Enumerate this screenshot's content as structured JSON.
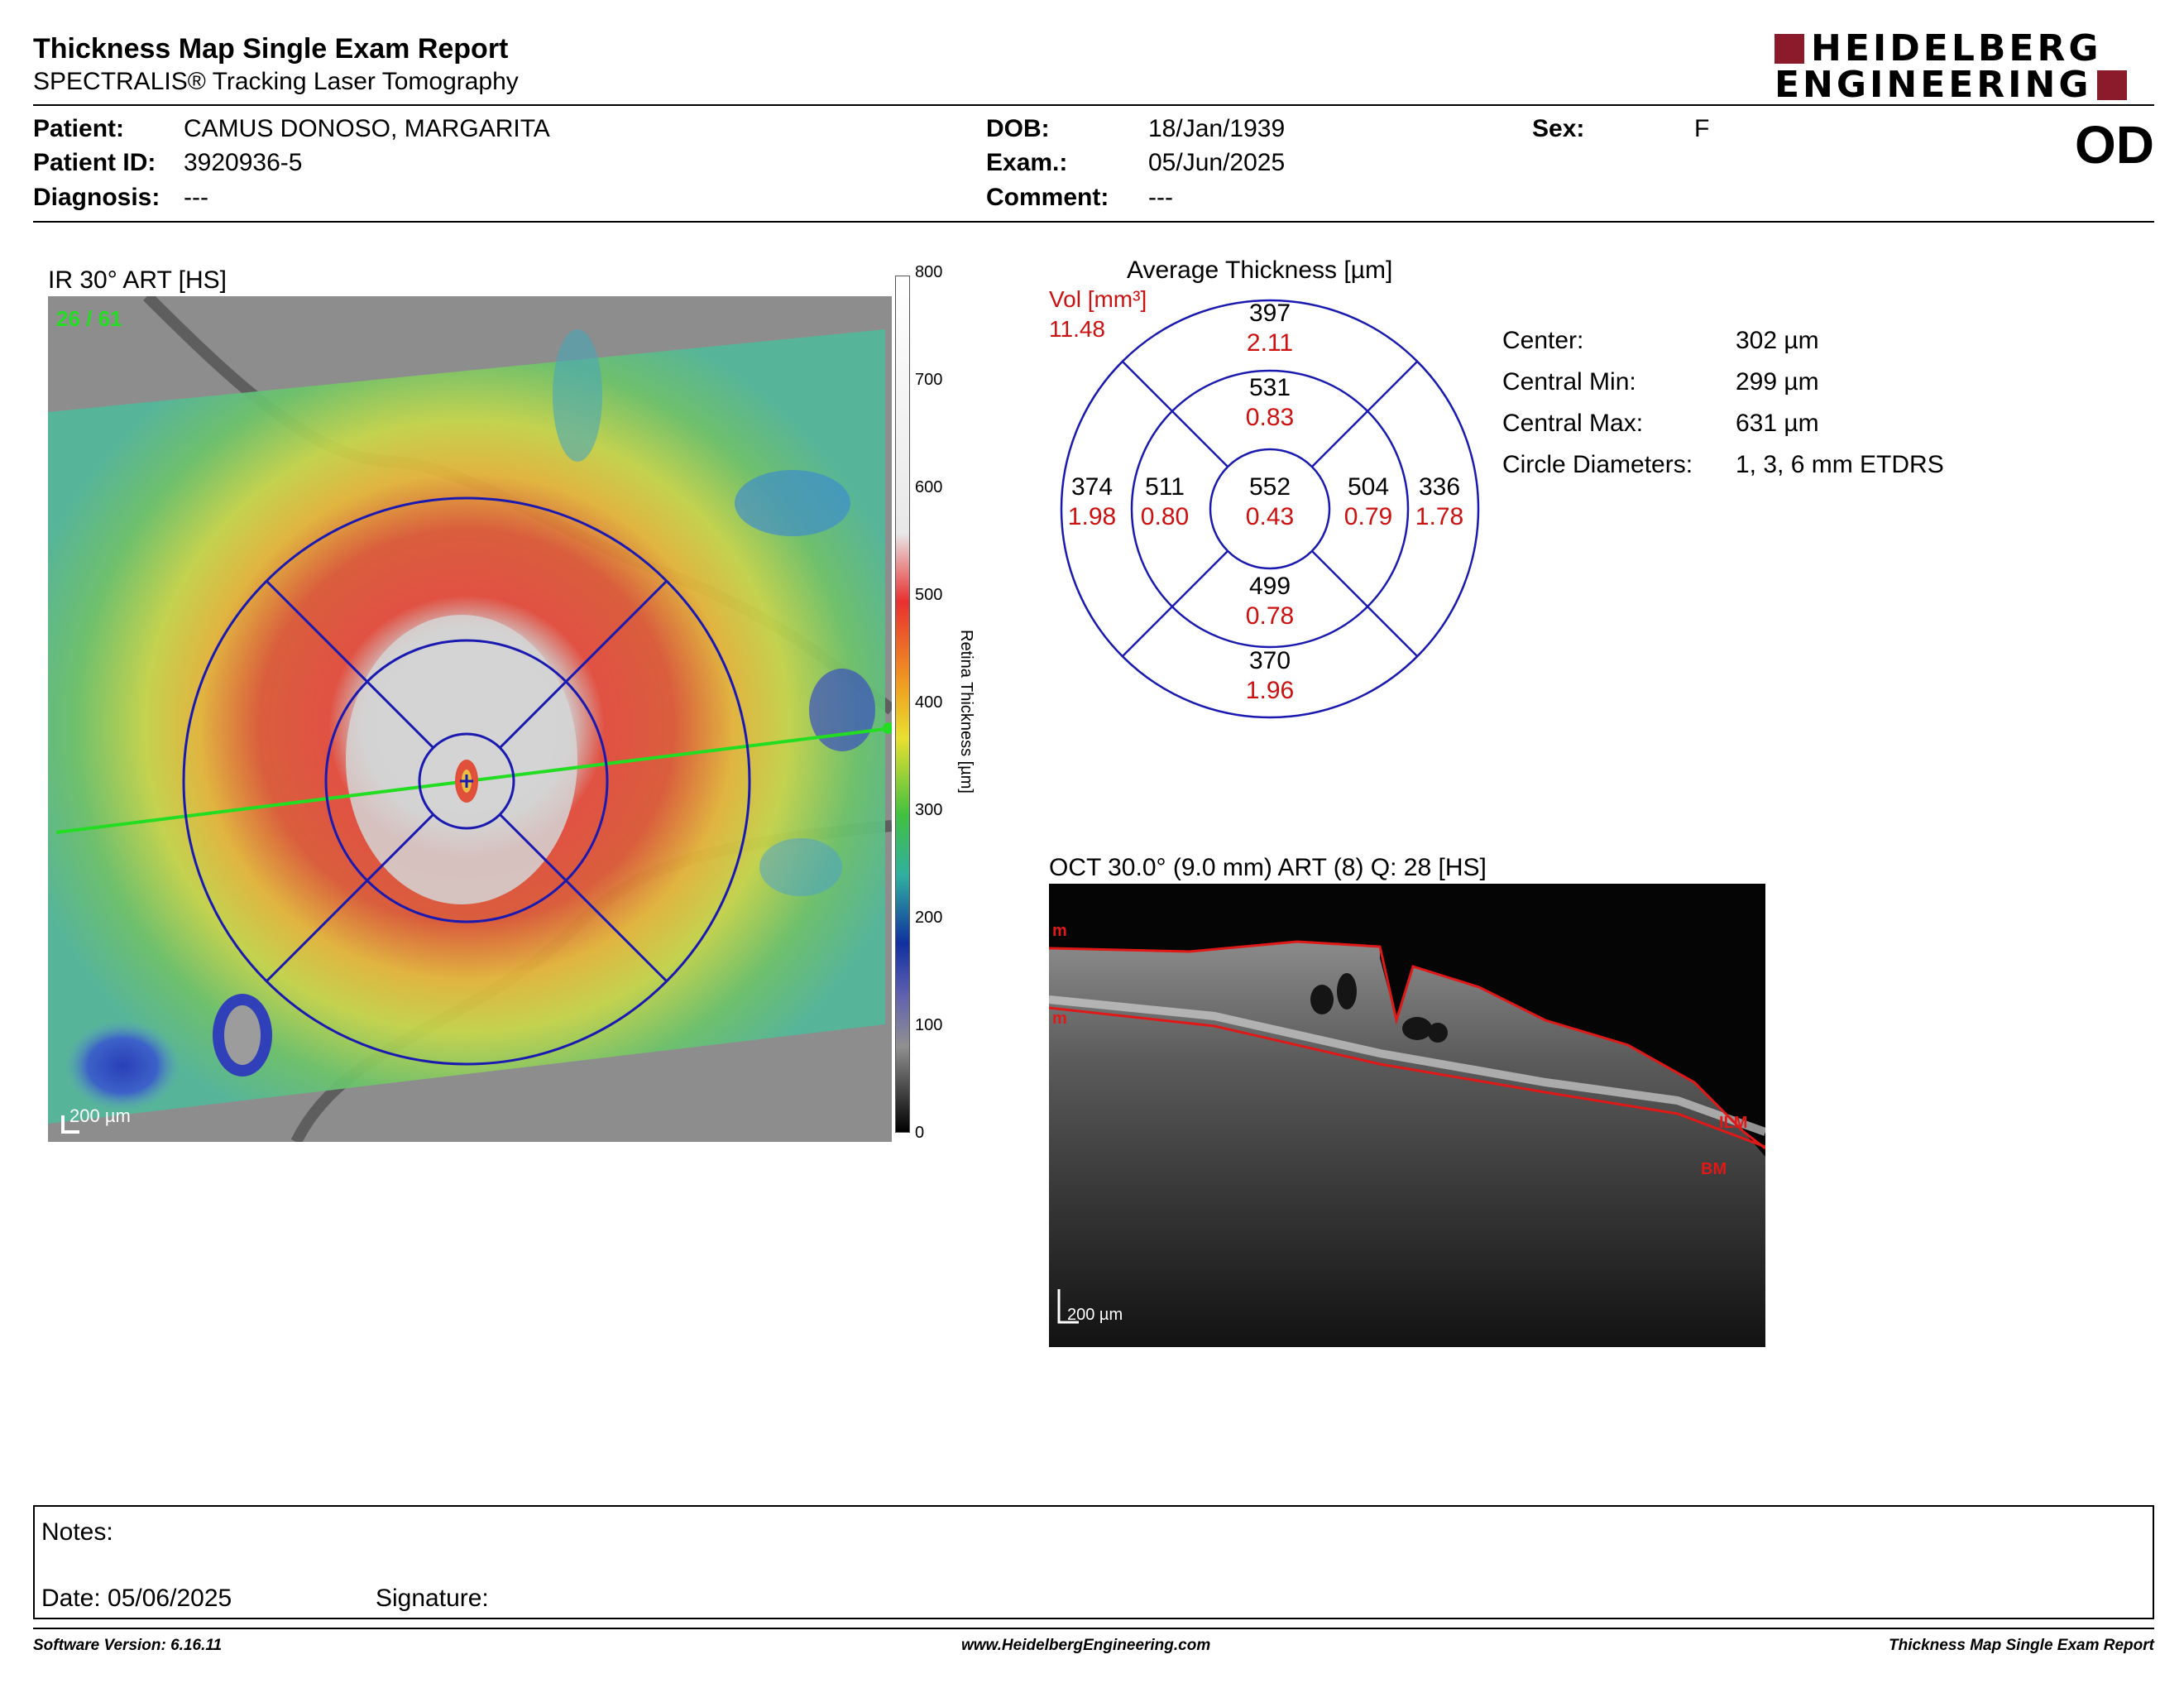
{
  "header": {
    "title": "Thickness Map Single Exam Report",
    "subtitle": "SPECTRALIS® Tracking Laser Tomography",
    "logo_line1": "HEIDELBERG",
    "logo_line2": "ENGINEERING",
    "eye": "OD"
  },
  "patient": {
    "patient_label": "Patient:",
    "patient_value": "CAMUS DONOSO, MARGARITA",
    "id_label": "Patient ID:",
    "id_value": "3920936-5",
    "diagnosis_label": "Diagnosis:",
    "diagnosis_value": "---",
    "dob_label": "DOB:",
    "dob_value": "18/Jan/1939",
    "exam_label": "Exam.:",
    "exam_value": "05/Jun/2025",
    "comment_label": "Comment:",
    "comment_value": "---",
    "sex_label": "Sex:",
    "sex_value": "F"
  },
  "ir_image": {
    "title": "IR 30° ART [HS]",
    "frame": "26 / 61",
    "scale_bar": "200 µm",
    "colorbar_label": "Retina Thickness [µm]",
    "colorbar_ticks": [
      "800",
      "700",
      "600",
      "500",
      "400",
      "300",
      "200",
      "100",
      "0"
    ]
  },
  "etdrs": {
    "title": "Average Thickness [µm]",
    "vol_label": "Vol [mm³]",
    "vol_total": "11.48",
    "center": {
      "thickness": "552",
      "volume": "0.43"
    },
    "inner_superior": {
      "thickness": "531",
      "volume": "0.83"
    },
    "inner_temporal": {
      "thickness": "511",
      "volume": "0.80"
    },
    "inner_nasal": {
      "thickness": "504",
      "volume": "0.79"
    },
    "inner_inferior": {
      "thickness": "499",
      "volume": "0.78"
    },
    "outer_superior": {
      "thickness": "397",
      "volume": "2.11"
    },
    "outer_temporal": {
      "thickness": "374",
      "volume": "1.98"
    },
    "outer_nasal": {
      "thickness": "336",
      "volume": "1.78"
    },
    "outer_inferior": {
      "thickness": "370",
      "volume": "1.96"
    }
  },
  "metrics": [
    {
      "label": "Center:",
      "value": "302 µm"
    },
    {
      "label": "Central Min:",
      "value": "299 µm"
    },
    {
      "label": "Central Max:",
      "value": "631 µm"
    },
    {
      "label": "Circle Diameters:",
      "value": "1, 3, 6 mm ETDRS"
    }
  ],
  "oct": {
    "title": "OCT 30.0° (9.0 mm) ART (8) Q: 28 [HS]",
    "ilm_label": "ILM",
    "bm_label": "BM",
    "left_marker_top": "m",
    "left_marker_bottom": "m",
    "scale_bar": "200 µm"
  },
  "notes": {
    "notes_label": "Notes:",
    "date_label": "Date: 05/06/2025",
    "signature_label": "Signature:"
  },
  "footer": {
    "software": "Software Version: 6.16.11",
    "website": "www.HeidelbergEngineering.com",
    "report_name": "Thickness Map Single Exam Report"
  },
  "colors": {
    "logo_red": "#8b1a2b",
    "etdrs_blue": "#1a1ab0",
    "volume_red": "#cc1111",
    "scan_line_green": "#22dd22",
    "frame_green": "#22dd22",
    "layer_red": "#e01818"
  }
}
